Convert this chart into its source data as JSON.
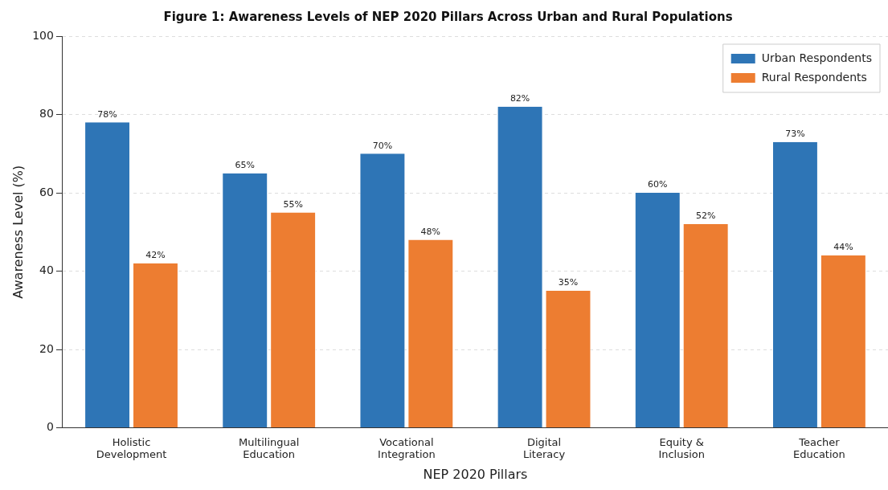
{
  "chart_data": {
    "type": "bar",
    "title": "Figure 1: Awareness Levels of NEP 2020 Pillars Across Urban and Rural Populations",
    "xlabel": "NEP 2020 Pillars",
    "ylabel": "Awareness Level (%)",
    "categories": [
      "Holistic\nDevelopment",
      "Multilingual\nEducation",
      "Vocational\nIntegration",
      "Digital\nLiteracy",
      "Equity &\nInclusion",
      "Teacher\nEducation"
    ],
    "series": [
      {
        "name": "Urban Respondents",
        "color": "#2e75b6",
        "values": [
          78,
          65,
          70,
          82,
          60,
          73
        ],
        "value_labels": [
          "78%",
          "65%",
          "70%",
          "82%",
          "60%",
          "73%"
        ]
      },
      {
        "name": "Rural Respondents",
        "color": "#ed7d31",
        "values": [
          42,
          55,
          48,
          35,
          52,
          44
        ],
        "value_labels": [
          "42%",
          "55%",
          "48%",
          "35%",
          "52%",
          "44%"
        ]
      }
    ],
    "ylim": [
      0,
      100
    ],
    "yticks": [
      0,
      20,
      40,
      60,
      80,
      100
    ],
    "grid": "y",
    "legend": "top right"
  }
}
